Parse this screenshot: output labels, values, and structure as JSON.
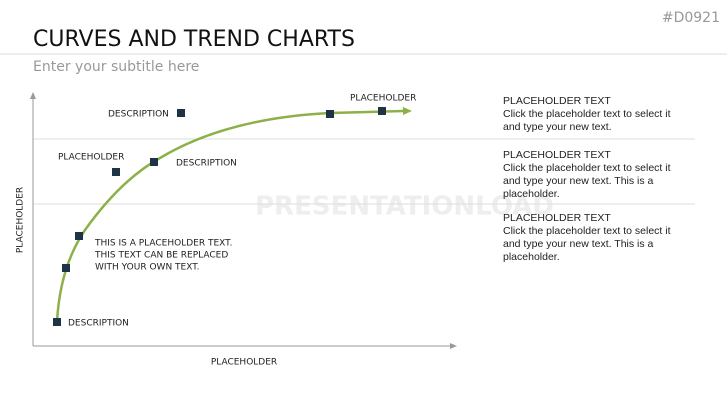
{
  "header": {
    "code": "#D0921",
    "title": "CURVES AND TREND CHARTS",
    "subtitle": "Enter your subtitle here"
  },
  "watermark": "PRESENTATIONLOAD",
  "diagram": {
    "y_axis_label": "PLACEHOLDER",
    "x_axis_label": "PLACEHOLDER",
    "labels": [
      "DESCRIPTION",
      "PLACEHOLDER",
      "DESCRIPTION",
      "PLACEHOLDER",
      "DESCRIPTION"
    ],
    "note_lines": [
      "THIS IS A PLACEHOLDER TEXT.",
      "THIS TEXT CAN BE REPLACED",
      "WITH YOUR OWN TEXT."
    ]
  },
  "blocks": [
    {
      "heading": "PLACEHOLDER TEXT",
      "lines": [
        "Click the placeholder text to select it",
        "and type your new text."
      ]
    },
    {
      "heading": "PLACEHOLDER TEXT",
      "lines": [
        "Click the placeholder text to select it",
        "and type your new text. This is a",
        "placeholder."
      ]
    },
    {
      "heading": "PLACEHOLDER TEXT",
      "lines": [
        "Click the placeholder text to select it",
        "and type your new text. This is a",
        "placeholder."
      ]
    }
  ]
}
